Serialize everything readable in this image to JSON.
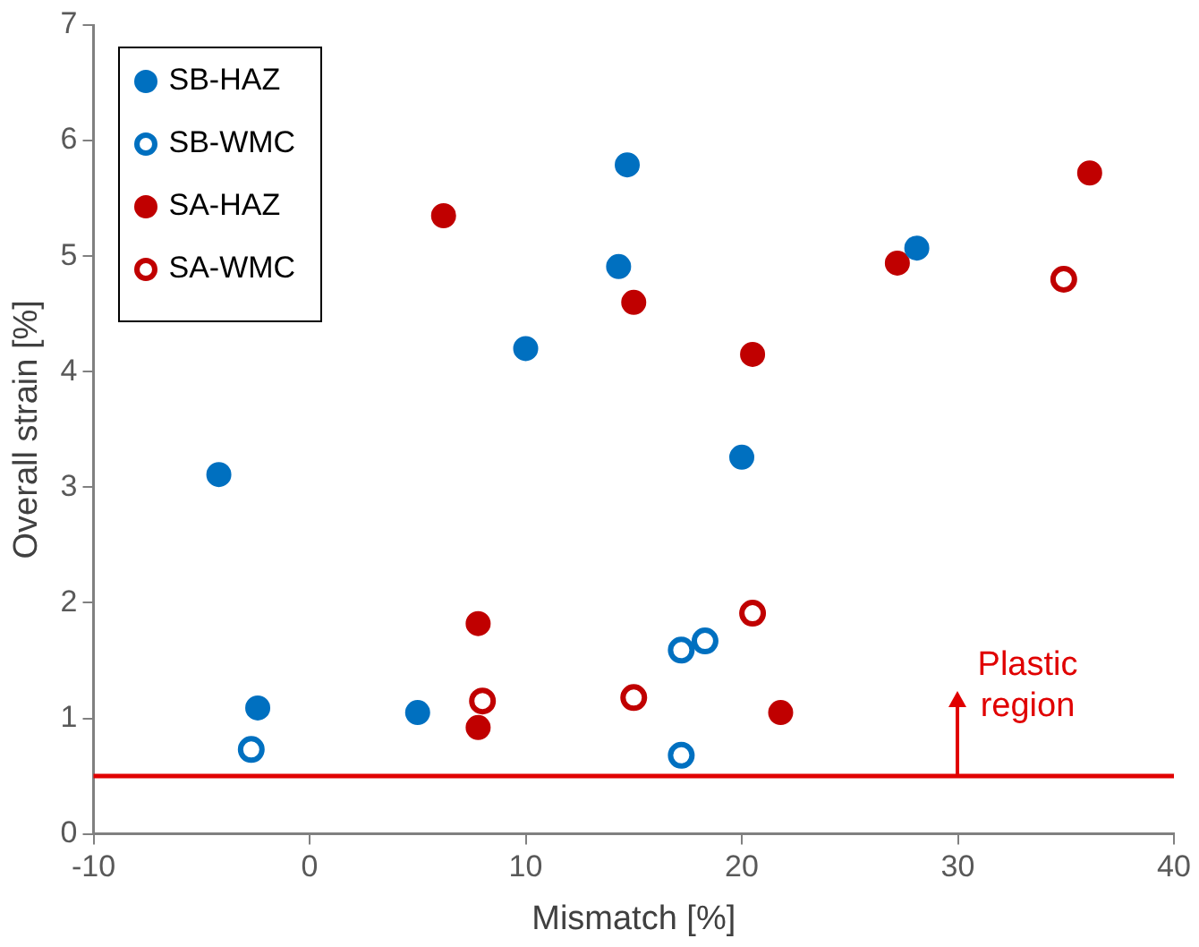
{
  "chart_data": {
    "type": "scatter",
    "xlabel": "Mismatch [%]",
    "ylabel": "Overall strain [%]",
    "xlim": [
      -10,
      40
    ],
    "xticks": [
      -10,
      0,
      10,
      20,
      30,
      40
    ],
    "ylim": [
      0,
      7
    ],
    "yticks": [
      0,
      1,
      2,
      3,
      4,
      5,
      6,
      7
    ],
    "grid": false,
    "legend": "top left",
    "marker": "circle",
    "series": [
      {
        "name": "SB-HAZ",
        "color": "#0070c0",
        "x": [
          -4.2,
          -2.4,
          5.0,
          10.0,
          14.3,
          14.7,
          20.0,
          28.1
        ],
        "values": [
          3.11,
          1.09,
          1.05,
          4.2,
          4.91,
          5.79,
          3.26,
          5.07
        ]
      },
      {
        "name": "SB-WMC",
        "color": "#0070c0",
        "marker": "circle-open",
        "x": [
          -2.7,
          17.2,
          18.3,
          17.2
        ],
        "values": [
          0.73,
          1.59,
          1.67,
          0.68
        ]
      },
      {
        "name": "SA-HAZ",
        "color": "#c00000",
        "x": [
          6.2,
          7.8,
          7.8,
          15.0,
          20.5,
          27.2,
          36.1,
          21.8
        ],
        "values": [
          5.35,
          1.82,
          0.92,
          4.6,
          4.15,
          4.94,
          5.72,
          1.05
        ]
      },
      {
        "name": "SA-WMC",
        "color": "#c00000",
        "marker": "circle-open",
        "x": [
          8.0,
          15.0,
          20.5,
          34.9
        ],
        "values": [
          1.15,
          1.18,
          1.91,
          4.8
        ]
      }
    ],
    "ref_lines": [
      {
        "axis": "y",
        "value": 0.5,
        "color": "#e00000"
      }
    ],
    "annotations": [
      {
        "text": "Plastic region",
        "x": 30,
        "y": 0.5
      }
    ]
  }
}
